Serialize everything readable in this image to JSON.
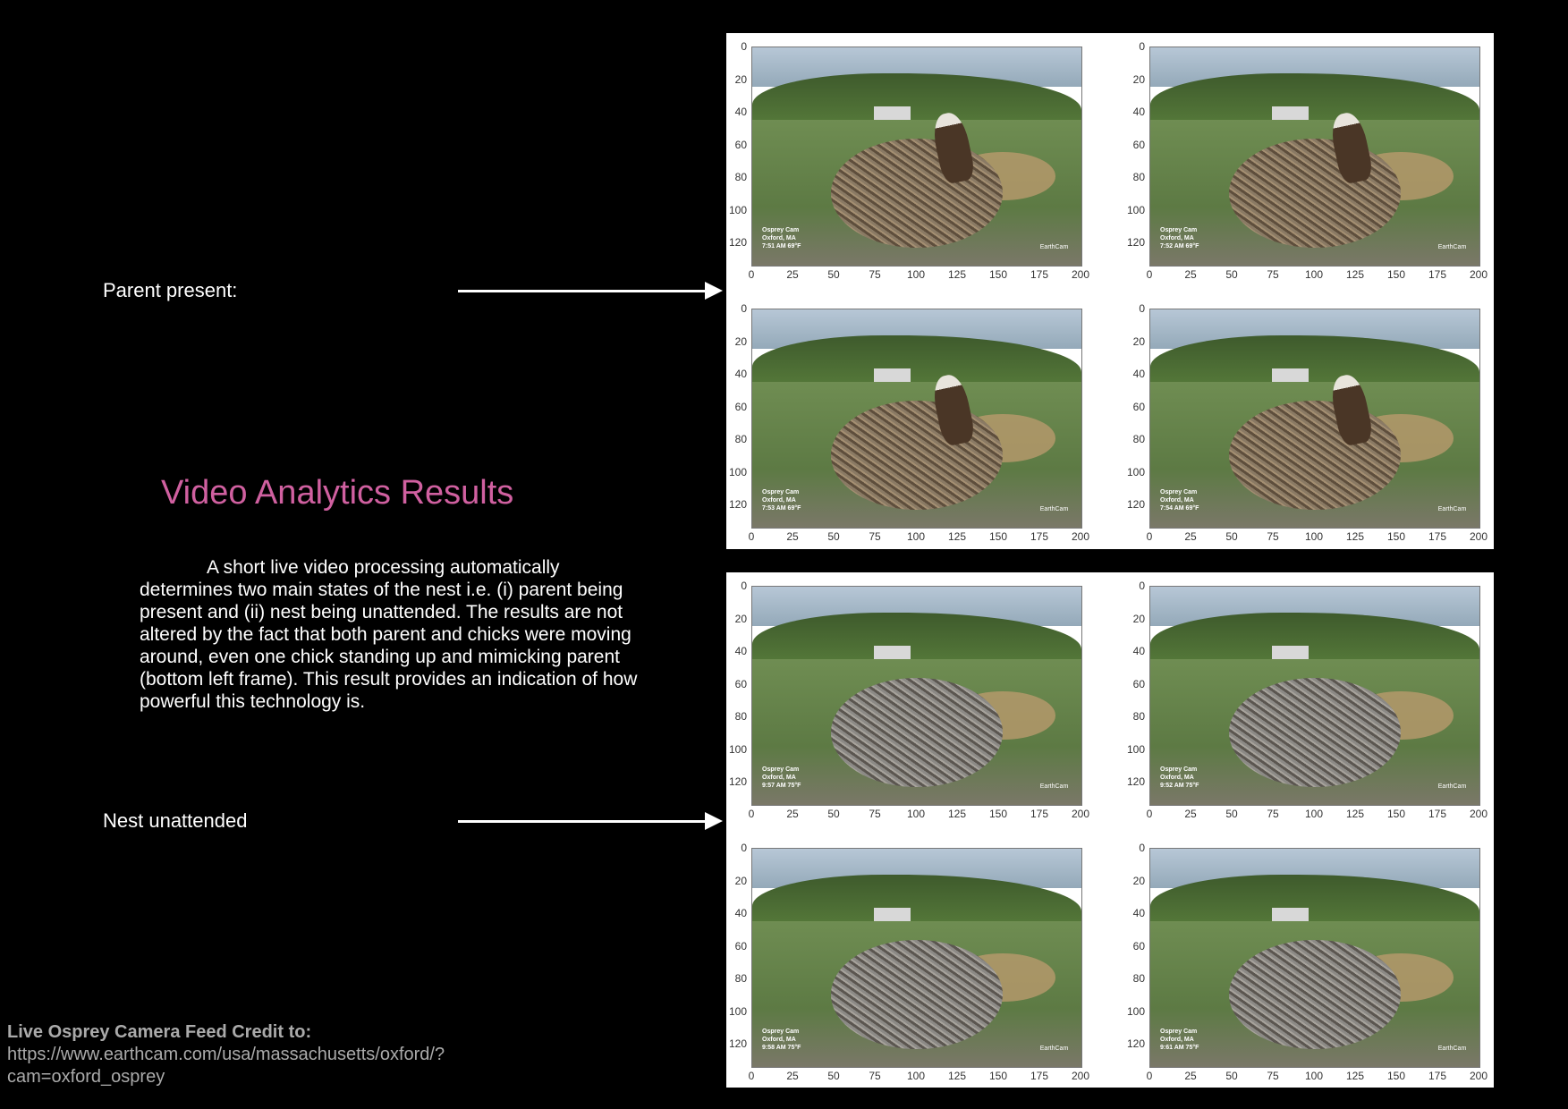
{
  "labels": {
    "parent_present": "Parent present:",
    "nest_unattended": "Nest unattended"
  },
  "title": "Video Analytics Results",
  "description": "A short live video processing automatically determines two main states of the nest i.e. (i) parent being present and (ii) nest being unattended. The results are not altered by the fact that both parent and chicks were moving around, even one chick standing up and mimicking parent (bottom left frame). This result provides an indication of how powerful this technology is.",
  "credit": {
    "title": "Live Osprey Camera Feed Credit to:",
    "url": "https://www.earthcam.com/usa/massachusetts/oxford/?cam=oxford_osprey"
  },
  "axes": {
    "y_ticks": [
      "0",
      "20",
      "40",
      "60",
      "80",
      "100",
      "120"
    ],
    "x_ticks": [
      "0",
      "25",
      "50",
      "75",
      "100",
      "125",
      "150",
      "175",
      "200"
    ]
  },
  "frames": {
    "camera_name": "Osprey Cam",
    "location": "Oxford, MA",
    "logo": "EarthCam",
    "parent_times": [
      "7:51 AM  69°F",
      "7:52 AM  69°F",
      "7:53 AM  69°F",
      "7:54 AM  69°F"
    ],
    "unattended_times": [
      "9:57 AM  75°F",
      "9:52 AM  75°F",
      "9:58 AM  75°F",
      "9:61 AM  75°F"
    ]
  }
}
